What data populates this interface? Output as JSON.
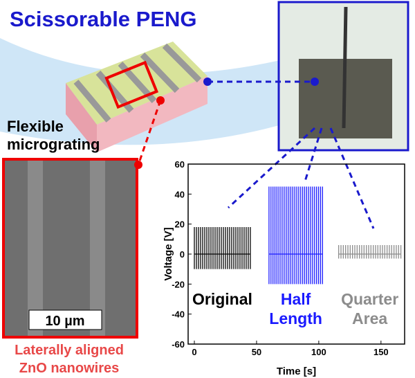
{
  "header": {
    "title": "Scissorable PENG"
  },
  "illustration": {
    "label_lines": [
      "Flexible",
      "micrograting"
    ]
  },
  "sem": {
    "scale_bar": "10 µm",
    "caption_lines": [
      "Laterally aligned",
      "ZnO nanowires"
    ]
  },
  "chart_data": {
    "type": "signal",
    "xlabel": "Time [s]",
    "ylabel": "Voltage [V]",
    "xlim": [
      -5,
      169
    ],
    "ylim": [
      -60,
      60
    ],
    "xticks": [
      0,
      50,
      100,
      150
    ],
    "yticks": [
      -60,
      -40,
      -20,
      0,
      20,
      40,
      60
    ],
    "series": [
      {
        "name": "Original",
        "color": "#000000",
        "x": [
          0,
          45
        ],
        "high": 18,
        "low": -10
      },
      {
        "name": "Half Length",
        "color": "#1a1aff",
        "x": [
          60,
          103
        ],
        "high": 45,
        "low": -20
      },
      {
        "name": "Quarter Area",
        "color": "#8c8c8c",
        "x": [
          116,
          166
        ],
        "high": 6,
        "low": -3
      }
    ]
  }
}
